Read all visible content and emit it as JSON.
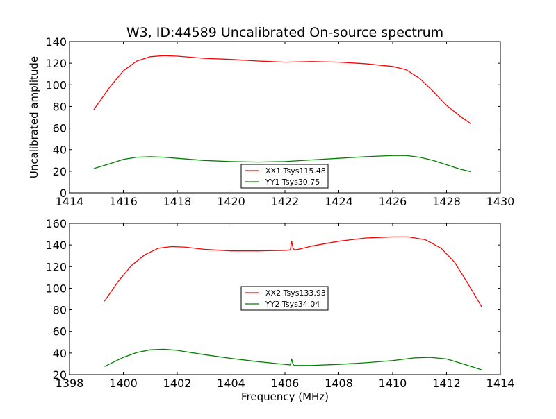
{
  "figure": {
    "title": "W3, ID:44589 Uncalibrated On-source spectrum",
    "background": "#ffffff"
  },
  "chart_data": [
    {
      "type": "line",
      "title": "W3, ID:44589 Uncalibrated On-source spectrum",
      "xlabel": "",
      "ylabel": "Uncalibrated amplitude",
      "xlim": [
        1414,
        1430
      ],
      "ylim": [
        0,
        140
      ],
      "xticks": [
        1414,
        1416,
        1418,
        1420,
        1422,
        1424,
        1426,
        1428,
        1430
      ],
      "yticks": [
        0,
        20,
        40,
        60,
        80,
        100,
        120,
        140
      ],
      "grid": false,
      "legend_position": "lower-center",
      "series": [
        {
          "name": "XX1 Tsys115.48",
          "color": "#ff0000",
          "x": [
            1414.9,
            1415.5,
            1416.0,
            1416.5,
            1417.0,
            1417.5,
            1418.0,
            1419.0,
            1420.0,
            1421.0,
            1422.0,
            1423.0,
            1424.0,
            1425.0,
            1426.0,
            1426.5,
            1427.0,
            1427.5,
            1428.0,
            1428.5,
            1428.9
          ],
          "y": [
            77,
            98,
            113,
            122,
            126,
            127,
            126.5,
            124.5,
            123.5,
            122,
            121,
            121.5,
            121,
            119.5,
            117,
            114,
            106,
            94,
            81,
            71,
            64
          ]
        },
        {
          "name": "YY1 Tsys30.75",
          "color": "#008000",
          "x": [
            1414.9,
            1415.5,
            1416.0,
            1416.5,
            1417.0,
            1417.5,
            1418.0,
            1419.0,
            1420.0,
            1421.0,
            1422.0,
            1423.0,
            1424.0,
            1425.0,
            1426.0,
            1426.5,
            1427.0,
            1427.5,
            1428.0,
            1428.5,
            1428.9
          ],
          "y": [
            22.5,
            27,
            31,
            33,
            33.5,
            33,
            32,
            30,
            29,
            28.5,
            29,
            30.5,
            32,
            33.5,
            34.5,
            34.5,
            33,
            30,
            26,
            22,
            19.5
          ]
        }
      ]
    },
    {
      "type": "line",
      "title": "",
      "xlabel": "Frequency (MHz)",
      "ylabel": "",
      "xlim": [
        1398,
        1414
      ],
      "ylim": [
        20,
        160
      ],
      "xticks": [
        1398,
        1400,
        1402,
        1404,
        1406,
        1408,
        1410,
        1412,
        1414
      ],
      "yticks": [
        20,
        40,
        60,
        80,
        100,
        120,
        140,
        160
      ],
      "grid": false,
      "legend_position": "center",
      "series": [
        {
          "name": "XX2 Tsys133.93",
          "color": "#ff0000",
          "x": [
            1399.3,
            1399.8,
            1400.3,
            1400.8,
            1401.3,
            1401.8,
            1402.3,
            1403.0,
            1404.0,
            1405.0,
            1406.0,
            1406.2,
            1406.25,
            1406.3,
            1406.35,
            1406.5,
            1407.0,
            1408.0,
            1409.0,
            1410.0,
            1410.6,
            1411.2,
            1411.8,
            1412.3,
            1412.8,
            1413.3
          ],
          "y": [
            88,
            106,
            121,
            131,
            137,
            138.5,
            138,
            136,
            134.5,
            134.5,
            135,
            135.5,
            143.5,
            137,
            135.5,
            136,
            139,
            143.5,
            146.5,
            147.5,
            147.5,
            145,
            137,
            124,
            104,
            83
          ]
        },
        {
          "name": "YY2 Tsys34.04",
          "color": "#008000",
          "x": [
            1399.3,
            1400.0,
            1400.5,
            1401.0,
            1401.5,
            1402.0,
            1403.0,
            1404.0,
            1405.0,
            1406.0,
            1406.2,
            1406.25,
            1406.3,
            1406.35,
            1406.5,
            1407.0,
            1408.0,
            1409.0,
            1410.0,
            1410.8,
            1411.4,
            1412.0,
            1412.6,
            1413.3
          ],
          "y": [
            27.5,
            36,
            40.5,
            43,
            43.5,
            42.5,
            38.5,
            35,
            32,
            29.5,
            29,
            34.5,
            29.5,
            28.5,
            28.5,
            28.5,
            29.5,
            31,
            33,
            35.5,
            36,
            34.5,
            30,
            24.5
          ]
        }
      ]
    }
  ]
}
